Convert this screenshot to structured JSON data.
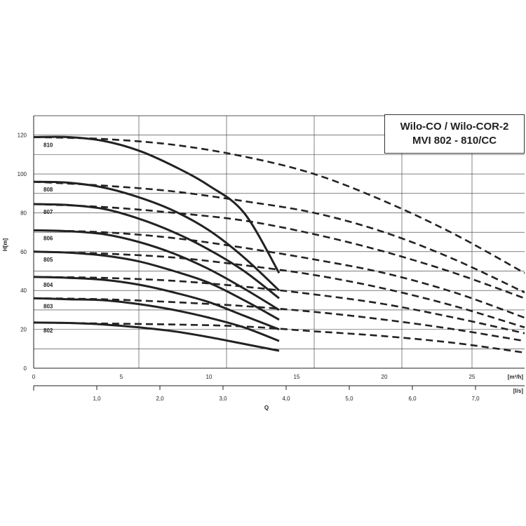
{
  "chart_data": {
    "type": "line",
    "title_lines": [
      "Wilo-CO / Wilo-COR-2",
      "MVI 802 - 810/CC"
    ],
    "ylabel": "H[m]",
    "xlabel": "Q",
    "x_unit_primary": "[m³/h]",
    "x_unit_secondary": "[l/s]",
    "xlim": [
      0,
      28
    ],
    "ylim": [
      0,
      130
    ],
    "y_ticks": [
      "0",
      "20",
      "40",
      "60",
      "80",
      "100",
      "120"
    ],
    "x_ticks": [
      "0",
      "5",
      "10",
      "15",
      "20",
      "25"
    ],
    "x2_ticks": [
      "1,0",
      "2,0",
      "3,0",
      "4,0",
      "5,0",
      "6,0",
      "7,0"
    ],
    "grid": true,
    "series": [
      {
        "name": "810",
        "solid": [
          [
            0,
            119
          ],
          [
            2,
            119
          ],
          [
            4,
            117
          ],
          [
            6,
            112
          ],
          [
            8,
            104
          ],
          [
            10,
            94
          ],
          [
            12,
            80
          ],
          [
            14,
            49
          ]
        ],
        "dashed": [
          [
            0,
            119
          ],
          [
            4,
            118
          ],
          [
            8,
            115
          ],
          [
            12,
            109
          ],
          [
            16,
            100
          ],
          [
            20,
            86
          ],
          [
            24,
            69
          ],
          [
            28,
            49
          ]
        ]
      },
      {
        "name": "808",
        "solid": [
          [
            0,
            96
          ],
          [
            2,
            95.5
          ],
          [
            4,
            93
          ],
          [
            6,
            88
          ],
          [
            8,
            81
          ],
          [
            10,
            71
          ],
          [
            12,
            57
          ],
          [
            14,
            40
          ]
        ],
        "dashed": [
          [
            0,
            96
          ],
          [
            4,
            94
          ],
          [
            8,
            91
          ],
          [
            12,
            86
          ],
          [
            16,
            80
          ],
          [
            20,
            70
          ],
          [
            24,
            56
          ],
          [
            28,
            39
          ]
        ]
      },
      {
        "name": "807",
        "solid": [
          [
            0,
            84.5
          ],
          [
            2,
            84
          ],
          [
            4,
            82
          ],
          [
            6,
            77
          ],
          [
            8,
            70
          ],
          [
            10,
            61
          ],
          [
            12,
            50
          ],
          [
            14,
            36
          ]
        ],
        "dashed": [
          [
            0,
            84.5
          ],
          [
            4,
            83
          ],
          [
            8,
            80
          ],
          [
            12,
            76
          ],
          [
            16,
            69
          ],
          [
            20,
            60
          ],
          [
            24,
            49
          ],
          [
            28,
            36
          ]
        ]
      },
      {
        "name": "806",
        "solid": [
          [
            0,
            71
          ],
          [
            2,
            70.5
          ],
          [
            4,
            69
          ],
          [
            6,
            65
          ],
          [
            8,
            59
          ],
          [
            10,
            51
          ],
          [
            12,
            41
          ],
          [
            14,
            30
          ]
        ],
        "dashed": [
          [
            0,
            71
          ],
          [
            4,
            70
          ],
          [
            8,
            67
          ],
          [
            12,
            62
          ],
          [
            16,
            56
          ],
          [
            20,
            49
          ],
          [
            24,
            39
          ],
          [
            28,
            26
          ]
        ]
      },
      {
        "name": "805",
        "solid": [
          [
            0,
            60
          ],
          [
            2,
            59.5
          ],
          [
            4,
            58
          ],
          [
            6,
            55
          ],
          [
            8,
            50
          ],
          [
            10,
            44
          ],
          [
            12,
            35
          ],
          [
            14,
            25
          ]
        ],
        "dashed": [
          [
            0,
            60
          ],
          [
            4,
            59
          ],
          [
            8,
            57
          ],
          [
            12,
            53
          ],
          [
            16,
            48
          ],
          [
            20,
            41
          ],
          [
            24,
            32
          ],
          [
            28,
            21
          ]
        ]
      },
      {
        "name": "804",
        "solid": [
          [
            0,
            47
          ],
          [
            2,
            46.5
          ],
          [
            4,
            45.5
          ],
          [
            6,
            43
          ],
          [
            8,
            39
          ],
          [
            10,
            34
          ],
          [
            12,
            27
          ],
          [
            14,
            20
          ]
        ],
        "dashed": [
          [
            0,
            47
          ],
          [
            4,
            46.5
          ],
          [
            8,
            45
          ],
          [
            12,
            42
          ],
          [
            16,
            38
          ],
          [
            20,
            33
          ],
          [
            24,
            26
          ],
          [
            28,
            18
          ]
        ]
      },
      {
        "name": "803",
        "solid": [
          [
            0,
            36
          ],
          [
            2,
            35.5
          ],
          [
            4,
            35
          ],
          [
            6,
            33
          ],
          [
            8,
            30
          ],
          [
            10,
            26
          ],
          [
            12,
            21
          ],
          [
            14,
            14
          ]
        ],
        "dashed": [
          [
            0,
            36
          ],
          [
            4,
            35.5
          ],
          [
            8,
            34
          ],
          [
            12,
            32
          ],
          [
            16,
            29
          ],
          [
            20,
            25
          ],
          [
            24,
            20
          ],
          [
            28,
            14
          ]
        ]
      },
      {
        "name": "802",
        "solid": [
          [
            0,
            23.5
          ],
          [
            2,
            23.3
          ],
          [
            4,
            22.5
          ],
          [
            6,
            21
          ],
          [
            8,
            19
          ],
          [
            10,
            16
          ],
          [
            12,
            12.5
          ],
          [
            14,
            9
          ]
        ],
        "dashed": [
          [
            0,
            23.5
          ],
          [
            4,
            23
          ],
          [
            8,
            22.5
          ],
          [
            12,
            21.5
          ],
          [
            16,
            19
          ],
          [
            20,
            16.5
          ],
          [
            24,
            13
          ],
          [
            28,
            8
          ]
        ]
      }
    ]
  }
}
